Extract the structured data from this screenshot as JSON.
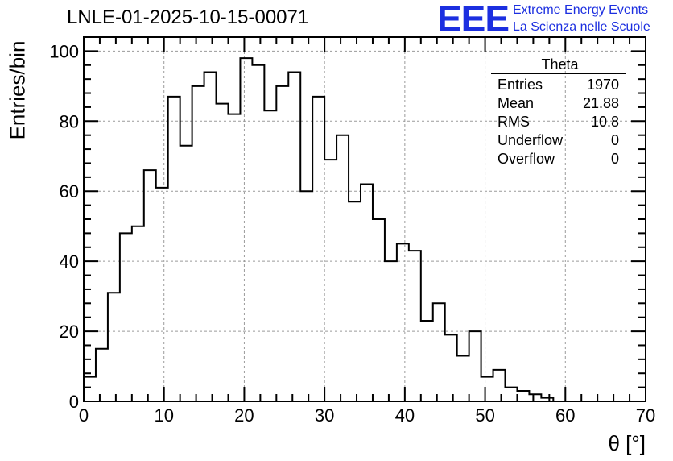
{
  "title": "LNLE-01-2025-10-15-00071",
  "logo": {
    "mark": "EEE",
    "line1": "Extreme Energy Events",
    "line2": "La Scienza nelle Scuole"
  },
  "stats": {
    "name": "Theta",
    "rows": [
      {
        "label": "Entries",
        "value": "1970"
      },
      {
        "label": "Mean",
        "value": "21.88"
      },
      {
        "label": "RMS",
        "value": "10.8"
      },
      {
        "label": "Underflow",
        "value": "0"
      },
      {
        "label": "Overflow",
        "value": "0"
      }
    ]
  },
  "chart_data": {
    "type": "bar",
    "title": "LNLE-01-2025-10-15-00071",
    "xlabel": "θ [°]",
    "ylabel": "Entries/bin",
    "xlim": [
      0,
      70
    ],
    "ylim": [
      0,
      104
    ],
    "grid": true,
    "x_ticks": [
      0,
      10,
      20,
      30,
      40,
      50,
      60,
      70
    ],
    "y_ticks": [
      0,
      20,
      40,
      60,
      80,
      100
    ],
    "bin_width": 1.5,
    "bin_edges_start": 0,
    "values": [
      7,
      15,
      31,
      48,
      50,
      66,
      61,
      87,
      73,
      90,
      94,
      85,
      82,
      98,
      96,
      83,
      90,
      94,
      60,
      87,
      69,
      76,
      57,
      62,
      52,
      40,
      45,
      43,
      23,
      28,
      19,
      13,
      20,
      7,
      9,
      4,
      3,
      2,
      1,
      0,
      0,
      0,
      0,
      0,
      0,
      0
    ]
  }
}
